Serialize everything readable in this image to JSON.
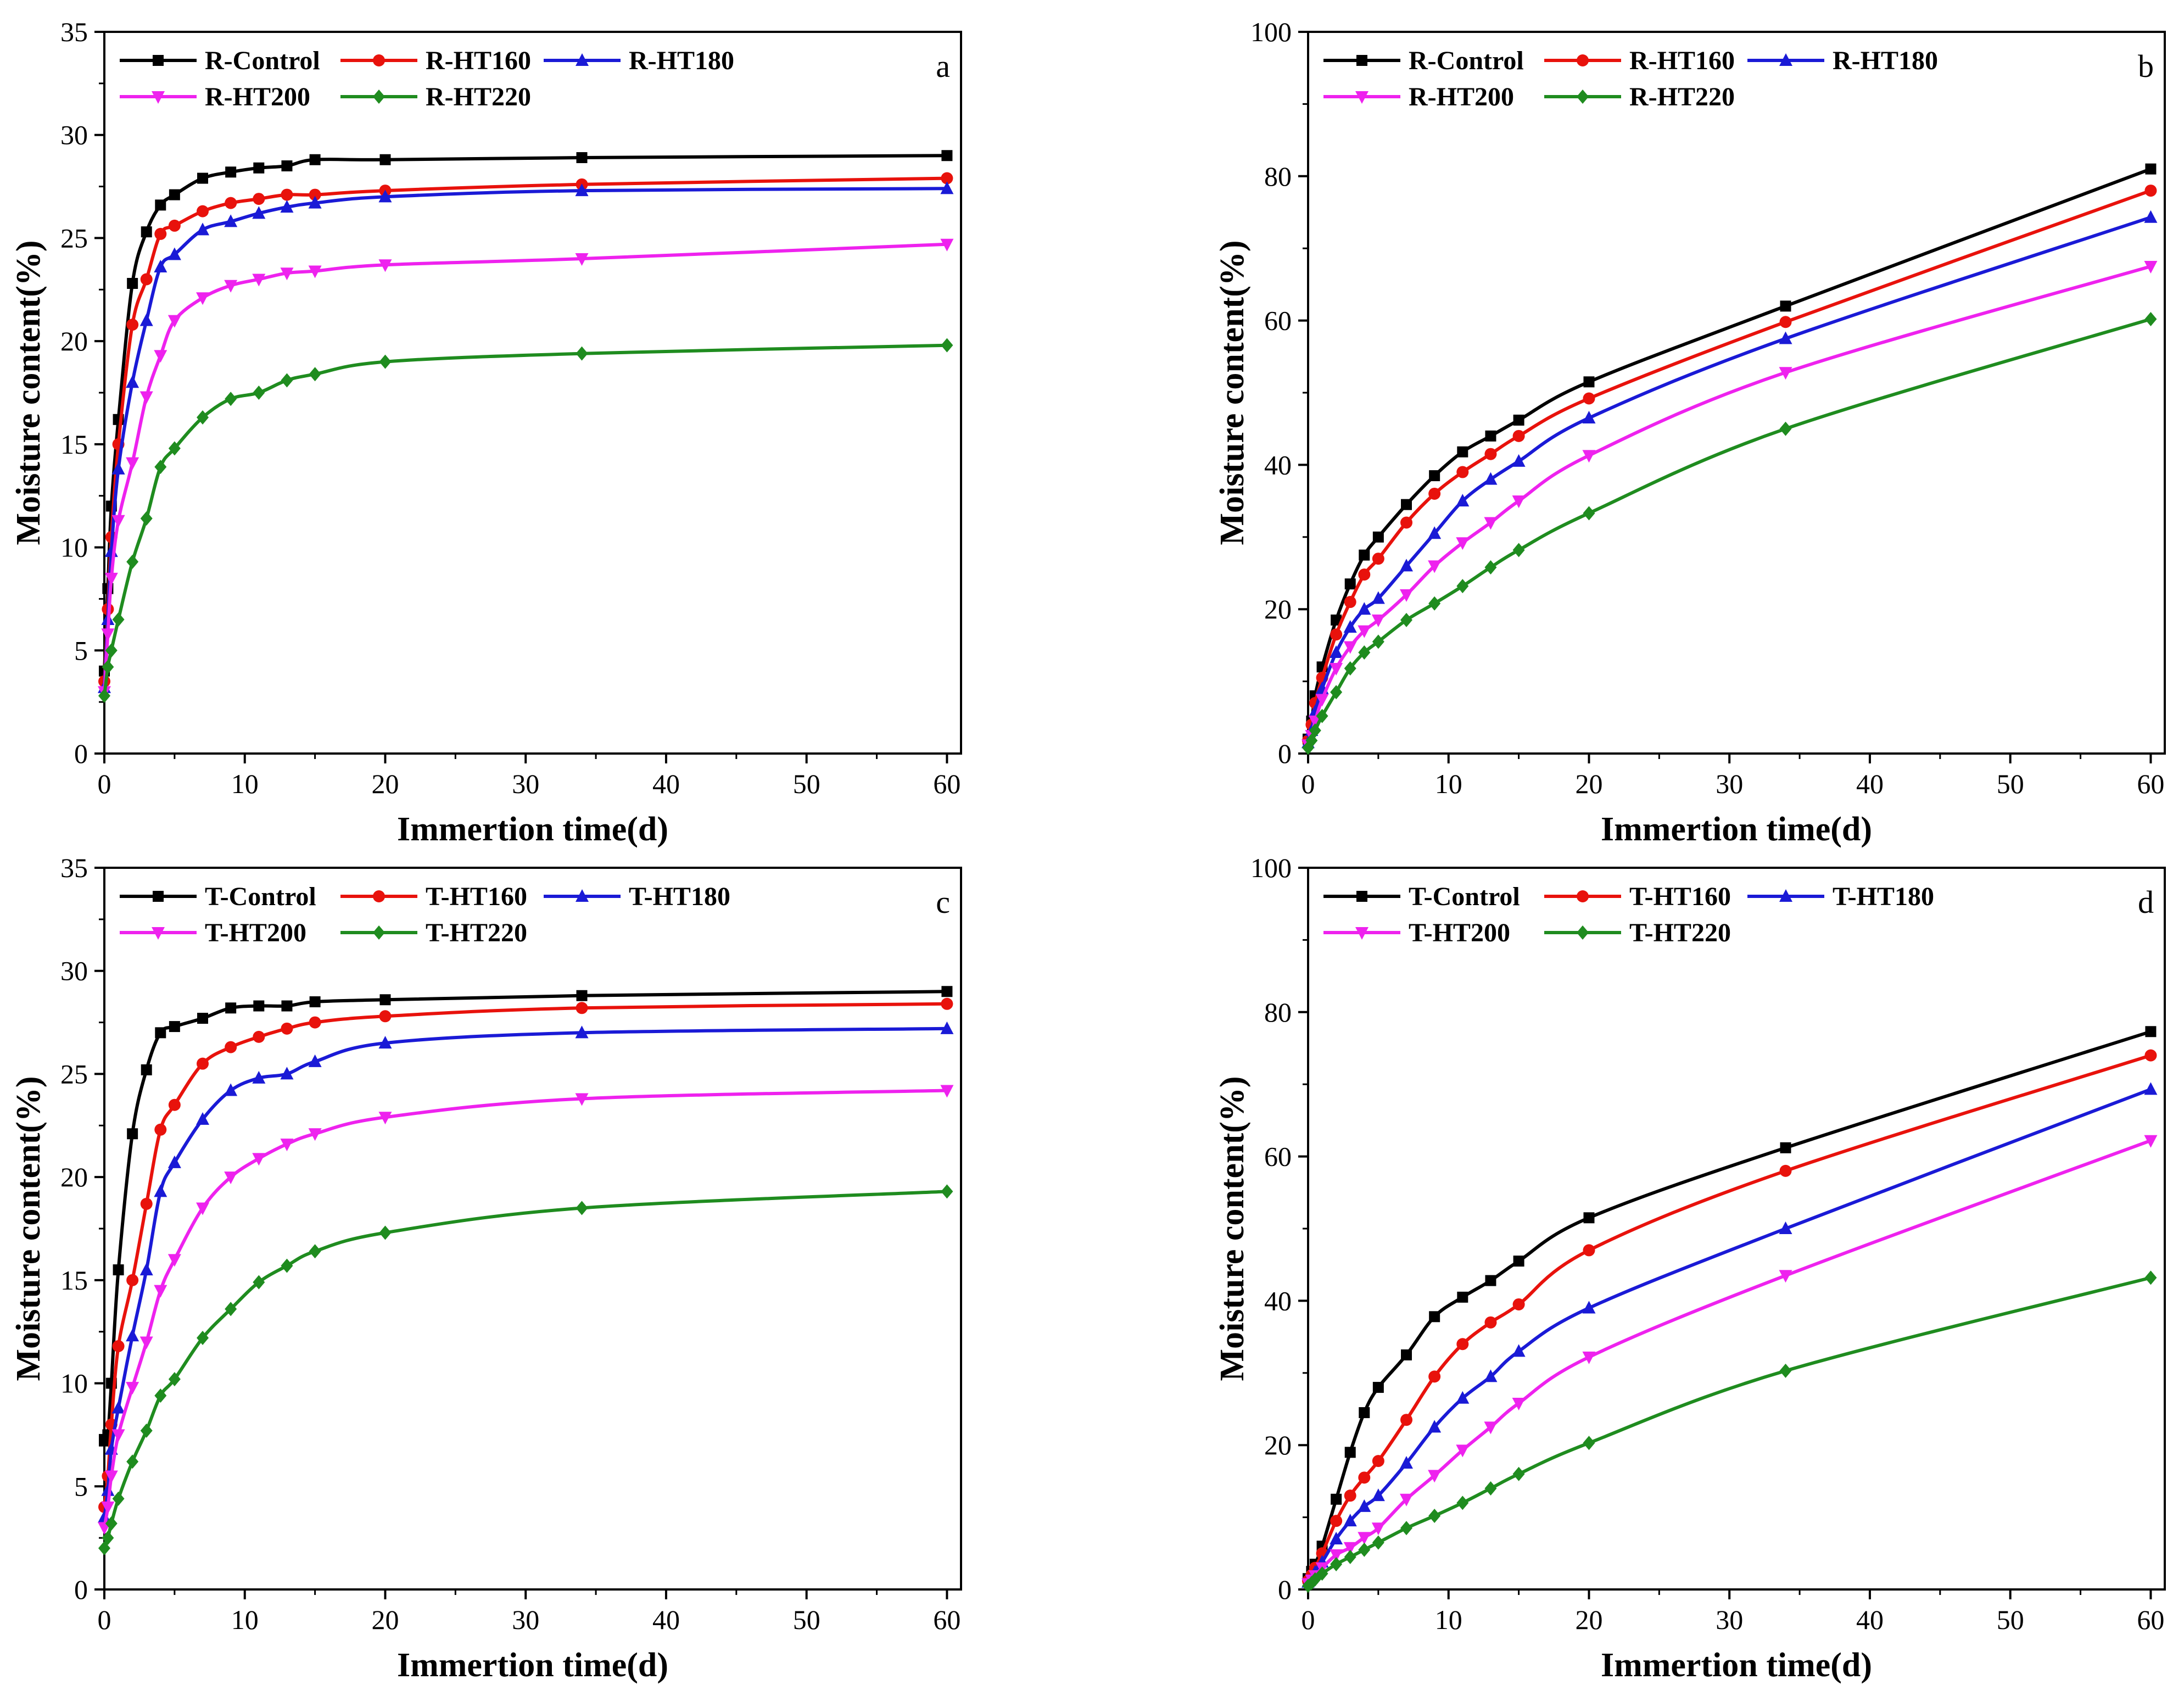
{
  "chart_data": [
    {
      "id": "a",
      "type": "line",
      "panel_label": "a",
      "xlabel": "Immertion time(d)",
      "ylabel": "Moisture content(%)",
      "xlim": [
        0,
        61
      ],
      "ylim": [
        0,
        35
      ],
      "xticks": [
        0,
        10,
        20,
        30,
        40,
        50,
        60
      ],
      "yticks": [
        0,
        5,
        10,
        15,
        20,
        25,
        30,
        35
      ],
      "x": [
        0,
        0.25,
        0.5,
        1,
        2,
        3,
        4,
        5,
        7,
        9,
        11,
        13,
        15,
        20,
        34,
        60
      ],
      "series": [
        {
          "name": "R-Control",
          "color": "#000000",
          "marker": "square",
          "values": [
            4.0,
            8.0,
            12.0,
            16.2,
            22.8,
            25.3,
            26.6,
            27.1,
            27.9,
            28.2,
            28.4,
            28.5,
            28.8,
            28.8,
            28.9,
            29.0
          ]
        },
        {
          "name": "R-HT160",
          "color": "#e8120c",
          "marker": "circle",
          "values": [
            3.5,
            7.0,
            10.5,
            15.0,
            20.8,
            23.0,
            25.2,
            25.6,
            26.3,
            26.7,
            26.9,
            27.1,
            27.1,
            27.3,
            27.6,
            27.9
          ]
        },
        {
          "name": "R-HT180",
          "color": "#1a1ad6",
          "marker": "triangle-up",
          "values": [
            3.2,
            6.5,
            9.8,
            13.8,
            18.0,
            21.0,
            23.6,
            24.2,
            25.4,
            25.8,
            26.2,
            26.5,
            26.7,
            27.0,
            27.3,
            27.4
          ]
        },
        {
          "name": "R-HT200",
          "color": "#ee22ee",
          "marker": "triangle-down",
          "values": [
            3.0,
            5.8,
            8.5,
            11.3,
            14.1,
            17.3,
            19.3,
            21.0,
            22.1,
            22.7,
            23.0,
            23.3,
            23.4,
            23.7,
            24.0,
            24.7
          ]
        },
        {
          "name": "R-HT220",
          "color": "#1f8c1f",
          "marker": "diamond",
          "values": [
            2.8,
            4.2,
            5.0,
            6.5,
            9.3,
            11.4,
            13.9,
            14.8,
            16.3,
            17.2,
            17.5,
            18.1,
            18.4,
            19.0,
            19.4,
            19.8
          ]
        }
      ]
    },
    {
      "id": "b",
      "type": "line",
      "panel_label": "b",
      "xlabel": "Immertion time(d)",
      "ylabel": "Moisture content(%)",
      "xlim": [
        0,
        61
      ],
      "ylim": [
        0,
        100
      ],
      "xticks": [
        0,
        10,
        20,
        30,
        40,
        50,
        60
      ],
      "yticks": [
        0,
        20,
        40,
        60,
        80,
        100
      ],
      "x": [
        0,
        0.25,
        0.5,
        1,
        2,
        3,
        4,
        5,
        7,
        9,
        11,
        13,
        15,
        20,
        34,
        60
      ],
      "series": [
        {
          "name": "R-Control",
          "color": "#000000",
          "marker": "square",
          "values": [
            2.0,
            4.5,
            8.0,
            12.0,
            18.5,
            23.5,
            27.5,
            30.0,
            34.5,
            38.5,
            41.8,
            44.0,
            46.2,
            51.5,
            62.0,
            81.0
          ]
        },
        {
          "name": "R-HT160",
          "color": "#e8120c",
          "marker": "circle",
          "values": [
            1.8,
            4.0,
            7.0,
            10.5,
            16.5,
            21.0,
            24.8,
            27.0,
            32.0,
            36.0,
            39.0,
            41.5,
            44.0,
            49.2,
            59.8,
            78.0
          ]
        },
        {
          "name": "R-HT180",
          "color": "#1a1ad6",
          "marker": "triangle-up",
          "values": [
            1.5,
            3.2,
            5.8,
            9.0,
            14.0,
            17.5,
            20.0,
            21.5,
            26.0,
            30.5,
            35.0,
            38.0,
            40.5,
            46.5,
            57.5,
            74.3
          ]
        },
        {
          "name": "R-HT200",
          "color": "#ee22ee",
          "marker": "triangle-down",
          "values": [
            1.2,
            2.5,
            4.5,
            7.5,
            11.8,
            14.8,
            17.0,
            18.5,
            22.0,
            26.0,
            29.2,
            32.0,
            35.0,
            41.3,
            52.8,
            67.5
          ]
        },
        {
          "name": "R-HT220",
          "color": "#1f8c1f",
          "marker": "diamond",
          "values": [
            0.8,
            1.8,
            3.2,
            5.2,
            8.5,
            11.8,
            14.0,
            15.5,
            18.5,
            20.8,
            23.2,
            25.8,
            28.2,
            33.3,
            45.0,
            60.2
          ]
        }
      ]
    },
    {
      "id": "c",
      "type": "line",
      "panel_label": "c",
      "xlabel": "Immertion time(d)",
      "ylabel": "Moisture content(%)",
      "xlim": [
        0,
        61
      ],
      "ylim": [
        0,
        35
      ],
      "xticks": [
        0,
        10,
        20,
        30,
        40,
        50,
        60
      ],
      "yticks": [
        0,
        5,
        10,
        15,
        20,
        25,
        30,
        35
      ],
      "x": [
        0,
        0.25,
        0.5,
        1,
        2,
        3,
        4,
        5,
        7,
        9,
        11,
        13,
        15,
        20,
        34,
        60
      ],
      "series": [
        {
          "name": "T-Control",
          "color": "#000000",
          "marker": "square",
          "values": [
            7.2,
            7.5,
            10.0,
            15.5,
            22.1,
            25.2,
            27.0,
            27.3,
            27.7,
            28.2,
            28.3,
            28.3,
            28.5,
            28.6,
            28.8,
            29.0
          ]
        },
        {
          "name": "T-HT160",
          "color": "#e8120c",
          "marker": "circle",
          "values": [
            4.0,
            5.5,
            8.0,
            11.8,
            15.0,
            18.7,
            22.3,
            23.5,
            25.5,
            26.3,
            26.8,
            27.2,
            27.5,
            27.8,
            28.2,
            28.4
          ]
        },
        {
          "name": "T-HT180",
          "color": "#1a1ad6",
          "marker": "triangle-up",
          "values": [
            3.5,
            4.8,
            6.8,
            8.8,
            12.3,
            15.5,
            19.3,
            20.7,
            22.8,
            24.2,
            24.8,
            25.0,
            25.6,
            26.5,
            27.0,
            27.2
          ]
        },
        {
          "name": "T-HT200",
          "color": "#ee22ee",
          "marker": "triangle-down",
          "values": [
            3.0,
            4.0,
            5.5,
            7.5,
            9.8,
            12.0,
            14.5,
            16.0,
            18.5,
            20.0,
            20.9,
            21.6,
            22.1,
            22.9,
            23.8,
            24.2
          ]
        },
        {
          "name": "T-HT220",
          "color": "#1f8c1f",
          "marker": "diamond",
          "values": [
            2.0,
            2.5,
            3.2,
            4.4,
            6.2,
            7.7,
            9.4,
            10.2,
            12.2,
            13.6,
            14.9,
            15.7,
            16.4,
            17.3,
            18.5,
            19.3
          ]
        }
      ]
    },
    {
      "id": "d",
      "type": "line",
      "panel_label": "d",
      "xlabel": "Immertion time(d)",
      "ylabel": "Moisture content(%)",
      "xlim": [
        0,
        61
      ],
      "ylim": [
        0,
        100
      ],
      "xticks": [
        0,
        10,
        20,
        30,
        40,
        50,
        60
      ],
      "yticks": [
        0,
        20,
        40,
        60,
        80,
        100
      ],
      "x": [
        0,
        0.25,
        0.5,
        1,
        2,
        3,
        4,
        5,
        7,
        9,
        11,
        13,
        15,
        20,
        34,
        60
      ],
      "series": [
        {
          "name": "T-Control",
          "color": "#000000",
          "marker": "square",
          "values": [
            1.5,
            2.5,
            3.5,
            6.0,
            12.5,
            19.0,
            24.5,
            28.0,
            32.5,
            37.8,
            40.5,
            42.8,
            45.5,
            51.5,
            61.2,
            77.3
          ]
        },
        {
          "name": "T-HT160",
          "color": "#e8120c",
          "marker": "circle",
          "values": [
            1.2,
            2.0,
            3.0,
            5.0,
            9.5,
            13.0,
            15.5,
            17.8,
            23.5,
            29.5,
            34.0,
            37.0,
            39.5,
            47.0,
            58.0,
            74.0
          ]
        },
        {
          "name": "T-HT180",
          "color": "#1a1ad6",
          "marker": "triangle-up",
          "values": [
            1.0,
            1.6,
            2.4,
            3.8,
            7.0,
            9.5,
            11.5,
            13.0,
            17.5,
            22.5,
            26.5,
            29.5,
            33.0,
            39.0,
            50.0,
            69.3
          ]
        },
        {
          "name": "T-HT200",
          "color": "#ee22ee",
          "marker": "triangle-down",
          "values": [
            0.8,
            1.3,
            1.9,
            3.0,
            4.8,
            5.8,
            7.2,
            8.5,
            12.5,
            15.8,
            19.3,
            22.5,
            25.8,
            32.2,
            43.5,
            62.2
          ]
        },
        {
          "name": "T-HT220",
          "color": "#1f8c1f",
          "marker": "diamond",
          "values": [
            0.5,
            0.9,
            1.4,
            2.2,
            3.5,
            4.5,
            5.5,
            6.5,
            8.5,
            10.2,
            12.0,
            14.0,
            16.0,
            20.3,
            30.3,
            43.2
          ]
        }
      ]
    }
  ]
}
